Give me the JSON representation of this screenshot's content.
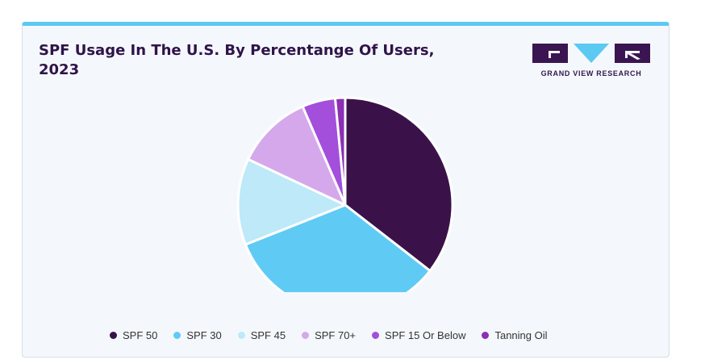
{
  "header": {
    "title": "SPF Usage In The U.S. By Percentange Of Users, 2023"
  },
  "logo": {
    "text": "GRAND VIEW RESEARCH",
    "color": "#3b1551",
    "accent": "#5bc9f1"
  },
  "colors": {
    "card_top_border": "#5bc9f1",
    "card_background": "#f4f8fc",
    "title": "#2f1349"
  },
  "chart_data": {
    "type": "pie",
    "title": "SPF Usage In The U.S. By Percentange Of Users, 2023",
    "start_angle_deg": 0,
    "direction": "clockwise",
    "legend_position": "bottom",
    "slices": [
      {
        "label": "SPF 50",
        "value": 35.5,
        "color": "#3a1249"
      },
      {
        "label": "SPF 30",
        "value": 33.5,
        "color": "#5fcbf4"
      },
      {
        "label": "SPF 45",
        "value": 13.0,
        "color": "#bde9f9"
      },
      {
        "label": "SPF 70+",
        "value": 11.5,
        "color": "#d5a8ec"
      },
      {
        "label": "SPF 15 Or Below",
        "value": 5.0,
        "color": "#a34fdb"
      },
      {
        "label": "Tanning Oil",
        "value": 1.5,
        "color": "#8b2fb5"
      }
    ]
  }
}
